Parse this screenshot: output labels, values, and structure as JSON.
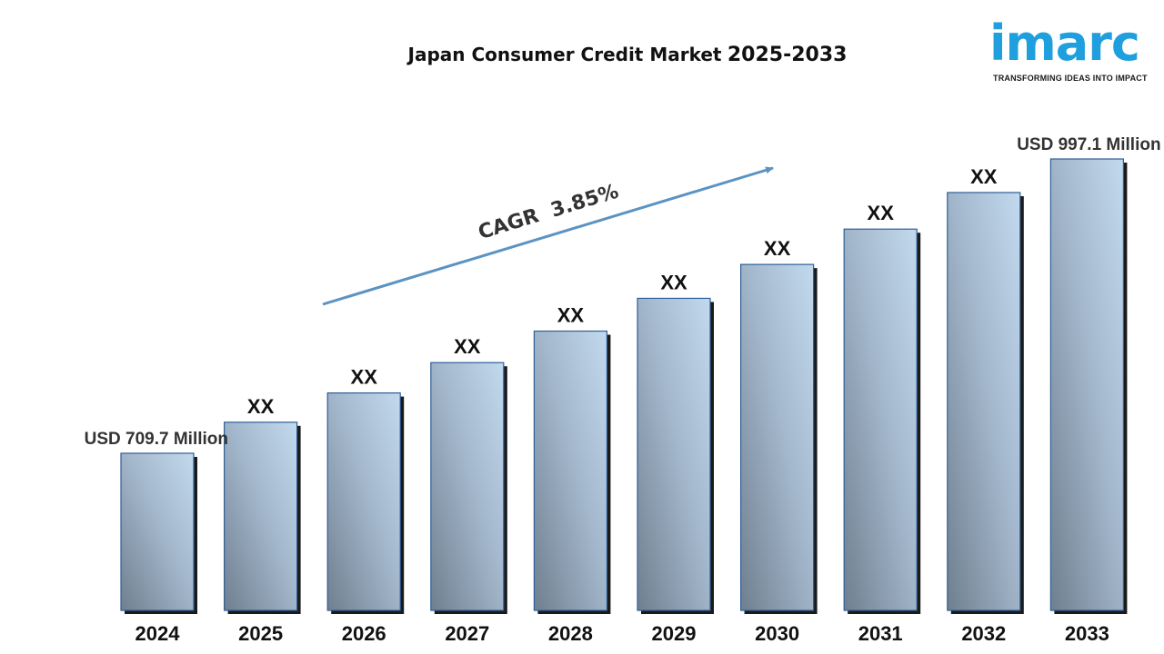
{
  "header": {
    "title_main": "Japan Consumer Credit Market",
    "title_years": "2025-2033"
  },
  "logo": {
    "word": "imarc",
    "tagline": "TRANSFORMING IDEAS INTO IMPACT"
  },
  "chart_data": {
    "type": "bar",
    "title": "Japan Consumer Credit Market 2025-2033",
    "categories": [
      "2024",
      "2025",
      "2026",
      "2027",
      "2028",
      "2029",
      "2030",
      "2031",
      "2032",
      "2033"
    ],
    "values": [
      709.7,
      740.0,
      768.6,
      798.2,
      829.0,
      861.0,
      894.1,
      928.6,
      964.3,
      997.1
    ],
    "data_labels": [
      "USD 709.7 Million",
      "XX",
      "XX",
      "XX",
      "XX",
      "XX",
      "XX",
      "XX",
      "XX",
      "USD 997.1 Million"
    ],
    "unit": "USD Million",
    "annotation": "CAGR  3.85%",
    "xlabel": "",
    "ylabel": "",
    "grid": false,
    "legend": "none",
    "bar_color": "#8fa9c6",
    "label_color": "#111111"
  }
}
